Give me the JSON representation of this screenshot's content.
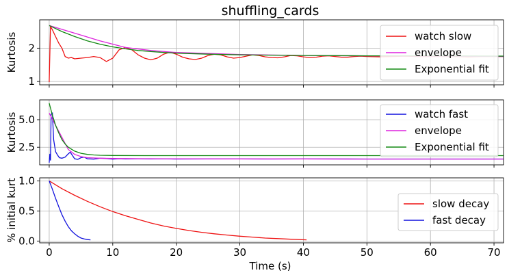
{
  "chart_data": {
    "title": "shuffling_cards",
    "xlabel": "Time (s)",
    "xlim": [
      -1.5,
      71.5
    ],
    "x_ticks": [
      0,
      10,
      20,
      30,
      40,
      50,
      60,
      70
    ],
    "grid": true,
    "panels": [
      {
        "type": "line",
        "ylabel": "Kurtosis",
        "ylim": [
          0.9,
          2.85
        ],
        "y_ticks": [
          1,
          2
        ],
        "legend_position": "upper-right",
        "series": [
          {
            "name": "watch slow",
            "color": "#ee1111",
            "x": [
              0,
              0.2,
              0.5,
              1,
              1.5,
              2,
              2.5,
              3,
              3.5,
              4,
              5,
              6,
              7,
              8,
              9,
              10,
              11,
              12,
              13,
              14,
              15,
              16,
              17,
              18,
              19,
              20,
              21,
              22,
              23,
              24,
              25,
              26,
              27,
              28,
              29,
              30,
              31,
              32,
              33,
              34,
              35,
              36,
              37,
              38,
              39,
              40,
              41,
              42,
              43,
              44,
              45,
              46,
              47,
              48,
              49,
              50,
              52,
              54,
              56,
              58,
              60,
              62,
              64,
              66,
              68,
              70,
              72
            ],
            "y": [
              0.98,
              2.65,
              2.55,
              2.35,
              2.15,
              2.0,
              1.75,
              1.7,
              1.72,
              1.68,
              1.7,
              1.72,
              1.75,
              1.72,
              1.6,
              1.7,
              1.95,
              2.02,
              1.95,
              1.8,
              1.7,
              1.65,
              1.7,
              1.82,
              1.88,
              1.82,
              1.73,
              1.68,
              1.66,
              1.7,
              1.78,
              1.82,
              1.8,
              1.74,
              1.7,
              1.72,
              1.76,
              1.8,
              1.78,
              1.74,
              1.72,
              1.71,
              1.74,
              1.78,
              1.77,
              1.74,
              1.72,
              1.73,
              1.76,
              1.77,
              1.75,
              1.73,
              1.73,
              1.75,
              1.76,
              1.75,
              1.74,
              1.75,
              1.76,
              1.75,
              1.75,
              1.75,
              1.75,
              1.74,
              1.75,
              1.75,
              1.75
            ]
          },
          {
            "name": "envelope",
            "color": "#dd22dd",
            "x": [
              0,
              4,
              8,
              12,
              16,
              20,
              30,
              40,
              50,
              60,
              72
            ],
            "y": [
              2.68,
              2.45,
              2.22,
              2.02,
              1.93,
              1.87,
              1.81,
              1.78,
              1.77,
              1.76,
              1.75
            ]
          },
          {
            "name": "Exponential fit",
            "color": "#118811",
            "x": [
              0,
              2,
              4,
              6,
              8,
              10,
              12,
              14,
              16,
              18,
              20,
              25,
              30,
              40,
              50,
              60,
              72
            ],
            "y": [
              2.68,
              2.5,
              2.35,
              2.22,
              2.12,
              2.04,
              1.98,
              1.93,
              1.9,
              1.87,
              1.85,
              1.82,
              1.8,
              1.78,
              1.77,
              1.77,
              1.76
            ]
          }
        ]
      },
      {
        "type": "line",
        "ylabel": "Kurtosis",
        "ylim": [
          0.9,
          6.8
        ],
        "y_ticks": [
          2.5,
          5.0
        ],
        "y_tick_labels": [
          "2.5",
          "5.0"
        ],
        "legend_position": "upper-right",
        "series": [
          {
            "name": "watch fast",
            "color": "#1111dd",
            "x": [
              0,
              0.1,
              0.2,
              0.3,
              0.5,
              0.7,
              1,
              1.3,
              1.6,
              2,
              2.5,
              3,
              3.3,
              3.6,
              4,
              4.5,
              5,
              5.5,
              6,
              7,
              8,
              9,
              10,
              11,
              12,
              14,
              16,
              18,
              20,
              25,
              30,
              35,
              40,
              50,
              60,
              72
            ],
            "y": [
              1.1,
              1.9,
              1.3,
              5.5,
              5.6,
              3.2,
              2.1,
              1.8,
              1.55,
              1.5,
              1.6,
              1.9,
              2.05,
              1.8,
              1.45,
              1.4,
              1.55,
              1.6,
              1.45,
              1.42,
              1.5,
              1.48,
              1.42,
              1.46,
              1.44,
              1.45,
              1.44,
              1.45,
              1.43,
              1.44,
              1.44,
              1.43,
              1.44,
              1.43,
              1.43,
              1.43
            ]
          },
          {
            "name": "envelope",
            "color": "#dd22dd",
            "x": [
              0,
              1,
              2,
              3,
              4,
              5,
              6,
              8,
              10,
              15,
              20,
              30,
              40,
              50,
              60,
              72
            ],
            "y": [
              5.6,
              4.5,
              3.4,
              2.3,
              1.85,
              1.65,
              1.55,
              1.5,
              1.48,
              1.46,
              1.45,
              1.44,
              1.44,
              1.43,
              1.43,
              1.43
            ]
          },
          {
            "name": "Exponential fit",
            "color": "#118811",
            "x": [
              0,
              0.5,
              1,
              1.5,
              2,
              2.5,
              3,
              4,
              5,
              6,
              7,
              8,
              10,
              15,
              20,
              30,
              40,
              50,
              60,
              72
            ],
            "y": [
              6.5,
              5.4,
              4.5,
              3.8,
              3.2,
              2.8,
              2.5,
              2.15,
              1.95,
              1.85,
              1.8,
              1.77,
              1.75,
              1.74,
              1.74,
              1.74,
              1.74,
              1.74,
              1.74,
              1.74
            ]
          }
        ]
      },
      {
        "type": "line",
        "ylabel": "% initial kurt",
        "ylim": [
          -0.03,
          1.05
        ],
        "y_ticks": [
          0.0,
          0.5,
          1.0
        ],
        "y_tick_labels": [
          "0.0",
          "0.5",
          "1.0"
        ],
        "legend_position": "center-right",
        "series": [
          {
            "name": "slow decay",
            "color": "#ee1111",
            "x": [
              0,
              2,
              4,
              6,
              8,
              10,
              12,
              14,
              16,
              18,
              20,
              22,
              24,
              26,
              28,
              30,
              32,
              34,
              36,
              38,
              40.5
            ],
            "y": [
              1.0,
              0.87,
              0.76,
              0.66,
              0.57,
              0.49,
              0.42,
              0.36,
              0.3,
              0.25,
              0.21,
              0.175,
              0.145,
              0.12,
              0.1,
              0.08,
              0.065,
              0.05,
              0.04,
              0.03,
              0.02
            ]
          },
          {
            "name": "fast decay",
            "color": "#1111dd",
            "x": [
              0,
              0.5,
              1,
              1.5,
              2,
              2.5,
              3,
              3.5,
              4,
              4.5,
              5,
              5.5,
              6,
              6.5
            ],
            "y": [
              1.0,
              0.86,
              0.71,
              0.57,
              0.44,
              0.33,
              0.24,
              0.17,
              0.12,
              0.08,
              0.05,
              0.035,
              0.025,
              0.02
            ]
          }
        ]
      }
    ]
  }
}
